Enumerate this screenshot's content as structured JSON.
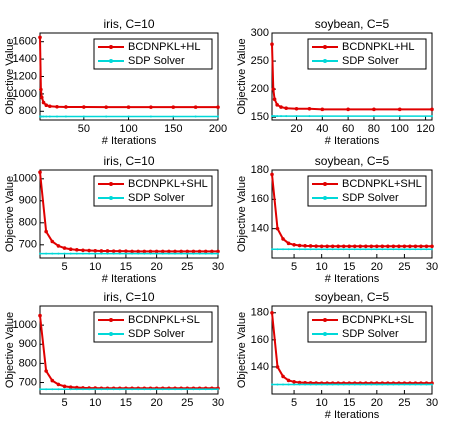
{
  "chart_data": [
    {
      "type": "line",
      "title": "iris, C=10",
      "x_label": "# Iterations",
      "y_label": "Objective Value",
      "x": [
        1,
        2,
        3,
        5,
        8,
        12,
        20,
        30,
        50,
        75,
        100,
        125,
        150,
        175,
        200
      ],
      "series": [
        {
          "name": "BCDNPKL+HL",
          "color": "#e00000",
          "values": [
            1650,
            1050,
            960,
            900,
            870,
            858,
            852,
            850,
            849,
            848,
            848,
            848,
            848,
            848,
            848
          ]
        },
        {
          "name": "SDP Solver",
          "color": "#00d8d8",
          "values": [
            740,
            740,
            740,
            740,
            740,
            740,
            740,
            740,
            740,
            740,
            740,
            740,
            740,
            740,
            740
          ]
        }
      ],
      "xlim": [
        1,
        200
      ],
      "xticks": [
        50,
        100,
        150,
        200
      ],
      "ylim": [
        700,
        1700
      ],
      "yticks": [
        800,
        1000,
        1200,
        1400,
        1600
      ],
      "legend": "upper right"
    },
    {
      "type": "line",
      "title": "soybean, C=5",
      "x_label": "# Iterations",
      "y_label": "Objective Value",
      "x": [
        1,
        2,
        3,
        5,
        8,
        12,
        20,
        30,
        40,
        60,
        80,
        100,
        125
      ],
      "series": [
        {
          "name": "BCDNPKL+HL",
          "color": "#e00000",
          "values": [
            280,
            200,
            182,
            172,
            168,
            166,
            165,
            165,
            164,
            164,
            164,
            164,
            164
          ]
        },
        {
          "name": "SDP Solver",
          "color": "#00d8d8",
          "values": [
            152,
            152,
            152,
            152,
            152,
            152,
            152,
            152,
            152,
            152,
            152,
            152,
            152
          ]
        }
      ],
      "xlim": [
        1,
        125
      ],
      "xticks": [
        20,
        40,
        60,
        80,
        100,
        120
      ],
      "ylim": [
        145,
        300
      ],
      "yticks": [
        150,
        200,
        250,
        300
      ],
      "legend": "upper right"
    },
    {
      "type": "line",
      "title": "iris, C=10",
      "x_label": "# Iterations",
      "y_label": "Objective Value",
      "x": [
        1,
        2,
        3,
        4,
        5,
        6,
        7,
        8,
        9,
        10,
        11,
        12,
        13,
        14,
        15,
        16,
        17,
        18,
        19,
        20,
        21,
        22,
        23,
        24,
        25,
        26,
        27,
        28,
        29,
        30
      ],
      "series": [
        {
          "name": "BCDNPKL+SHL",
          "color": "#e00000",
          "values": [
            1030,
            760,
            715,
            695,
            685,
            680,
            677,
            675,
            674,
            673,
            672,
            672,
            671,
            671,
            671,
            670,
            670,
            670,
            670,
            670,
            670,
            670,
            670,
            670,
            670,
            670,
            670,
            670,
            670,
            670
          ]
        },
        {
          "name": "SDP Solver",
          "color": "#00d8d8",
          "values": [
            660,
            660,
            660,
            660,
            660,
            660,
            660,
            660,
            660,
            660,
            660,
            660,
            660,
            660,
            660,
            660,
            660,
            660,
            660,
            660,
            660,
            660,
            660,
            660,
            660,
            660,
            660,
            660,
            660,
            660
          ]
        }
      ],
      "xlim": [
        1,
        30
      ],
      "xticks": [
        5,
        10,
        15,
        20,
        25,
        30
      ],
      "ylim": [
        640,
        1040
      ],
      "yticks": [
        700,
        800,
        900,
        1000
      ],
      "legend": "upper right"
    },
    {
      "type": "line",
      "title": "soybean, C=5",
      "x_label": "# Iterations",
      "y_label": "Objective Value",
      "x": [
        1,
        2,
        3,
        4,
        5,
        6,
        7,
        8,
        9,
        10,
        11,
        12,
        13,
        14,
        15,
        16,
        17,
        18,
        19,
        20,
        21,
        22,
        23,
        24,
        25,
        26,
        27,
        28,
        29,
        30
      ],
      "series": [
        {
          "name": "BCDNPKL+SHL",
          "color": "#e00000",
          "values": [
            177,
            140,
            133,
            130,
            129,
            128.5,
            128.3,
            128.2,
            128.1,
            128,
            128,
            128,
            128,
            128,
            128,
            128,
            128,
            128,
            128,
            128,
            128,
            128,
            128,
            128,
            128,
            128,
            128,
            128,
            128,
            128
          ]
        },
        {
          "name": "SDP Solver",
          "color": "#00d8d8",
          "values": [
            126,
            126,
            126,
            126,
            126,
            126,
            126,
            126,
            126,
            126,
            126,
            126,
            126,
            126,
            126,
            126,
            126,
            126,
            126,
            126,
            126,
            126,
            126,
            126,
            126,
            126,
            126,
            126,
            126,
            126
          ]
        }
      ],
      "xlim": [
        1,
        30
      ],
      "xticks": [
        5,
        10,
        15,
        20,
        25,
        30
      ],
      "ylim": [
        120,
        180
      ],
      "yticks": [
        140,
        160,
        180
      ],
      "legend": "upper right"
    },
    {
      "type": "line",
      "title": "iris, C=10",
      "y_label": "Objective Value",
      "x": [
        1,
        2,
        3,
        4,
        5,
        6,
        7,
        8,
        9,
        10,
        11,
        12,
        13,
        14,
        15,
        16,
        17,
        18,
        19,
        20,
        21,
        22,
        23,
        24,
        25,
        26,
        27,
        28,
        29,
        30
      ],
      "series": [
        {
          "name": "BCDNPKL+SL",
          "color": "#e00000",
          "values": [
            1050,
            760,
            710,
            690,
            680,
            676,
            674,
            672,
            671,
            671,
            670,
            670,
            670,
            670,
            670,
            670,
            670,
            670,
            670,
            670,
            670,
            670,
            670,
            670,
            670,
            670,
            670,
            670,
            670,
            670
          ]
        },
        {
          "name": "SDP Solver",
          "color": "#00d8d8",
          "values": [
            665,
            665,
            665,
            665,
            665,
            665,
            665,
            665,
            665,
            665,
            665,
            665,
            665,
            665,
            665,
            665,
            665,
            665,
            665,
            665,
            665,
            665,
            665,
            665,
            665,
            665,
            665,
            665,
            665,
            665
          ]
        }
      ],
      "xlim": [
        1,
        30
      ],
      "xticks": [
        5,
        10,
        15,
        20,
        25,
        30
      ],
      "ylim": [
        640,
        1100
      ],
      "yticks": [
        700,
        800,
        900,
        1000
      ],
      "legend": "upper right"
    },
    {
      "type": "line",
      "title": "soybean, C=5",
      "x_label": "# Iterations",
      "y_label": "Objective Value",
      "x": [
        1,
        2,
        3,
        4,
        5,
        6,
        7,
        8,
        9,
        10,
        11,
        12,
        13,
        14,
        15,
        16,
        17,
        18,
        19,
        20,
        21,
        22,
        23,
        24,
        25,
        26,
        27,
        28,
        29,
        30
      ],
      "series": [
        {
          "name": "BCDNPKL+SL",
          "color": "#e00000",
          "values": [
            180,
            140,
            133,
            130,
            129,
            128.5,
            128.3,
            128.2,
            128.1,
            128,
            128,
            128,
            128,
            128,
            128,
            128,
            128,
            128,
            128,
            128,
            128,
            128,
            128,
            128,
            128,
            128,
            128,
            128,
            128,
            128
          ]
        },
        {
          "name": "SDP Solver",
          "color": "#00d8d8",
          "values": [
            127,
            127,
            127,
            127,
            127,
            127,
            127,
            127,
            127,
            127,
            127,
            127,
            127,
            127,
            127,
            127,
            127,
            127,
            127,
            127,
            127,
            127,
            127,
            127,
            127,
            127,
            127,
            127,
            127,
            127
          ]
        }
      ],
      "xlim": [
        1,
        30
      ],
      "xticks": [
        5,
        10,
        15,
        20,
        25,
        30
      ],
      "ylim": [
        120,
        185
      ],
      "yticks": [
        140,
        160,
        180
      ],
      "legend": "upper right"
    }
  ]
}
